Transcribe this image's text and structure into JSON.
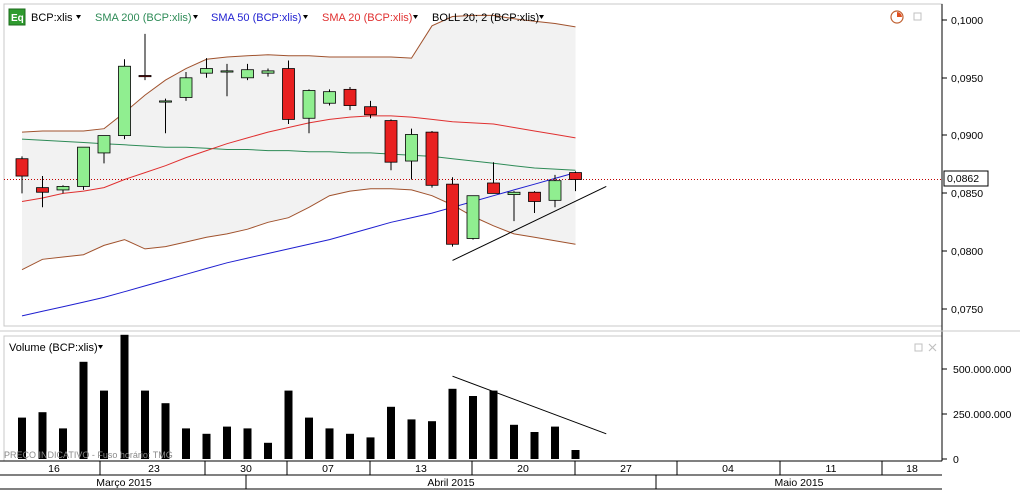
{
  "colors": {
    "sma200": "#2e8b57",
    "sma50": "#1f1fd0",
    "sma20": "#e03030",
    "boll": "#a0522d",
    "bull": "#90ee90",
    "bear": "#e82020",
    "volume": "#000000",
    "band_fill": "#f2f2f2",
    "last_price_line": "#c00000"
  },
  "toolbar": {
    "icon_label": "Eq",
    "symbol": "BCP:xlis",
    "sma200": "SMA 200 (BCP:xlis)",
    "sma50": "SMA 50 (BCP:xlis)",
    "sma20": "SMA 20 (BCP:xlis)",
    "boll": "BOLL 20; 2 (BCP:xlis)"
  },
  "volume_panel": {
    "title": "Volume (BCP:xlis)",
    "watermark": "PREÇO INDICATIVO - Fuso horário: TMG"
  },
  "price_axis": {
    "ticks": [
      "0,1000",
      "0,0950",
      "0,0900",
      "0,0850",
      "0,0800",
      "0,0750"
    ],
    "last_price": "0,0862"
  },
  "volume_axis": {
    "ticks": [
      "500.000.000",
      "250.000.000",
      "0"
    ]
  },
  "date_axis": {
    "days": [
      "16",
      "23",
      "30",
      "07",
      "13",
      "20",
      "27",
      "04",
      "11",
      "18"
    ],
    "months": [
      "Março 2015",
      "Abril 2015",
      "Maio 2015"
    ]
  },
  "chart_data": {
    "type": "candlestick",
    "symbol": "BCP:xlis",
    "ylim": [
      0.0735,
      0.1012
    ],
    "volume_ylim": [
      0,
      700000000
    ],
    "last_price": 0.0862,
    "candles": [
      {
        "o": 0.088,
        "h": 0.0882,
        "l": 0.085,
        "c": 0.0865
      },
      {
        "o": 0.0855,
        "h": 0.0865,
        "l": 0.0838,
        "c": 0.0851
      },
      {
        "o": 0.0853,
        "h": 0.0857,
        "l": 0.085,
        "c": 0.0856
      },
      {
        "o": 0.0856,
        "h": 0.089,
        "l": 0.0853,
        "c": 0.089
      },
      {
        "o": 0.0885,
        "h": 0.09,
        "l": 0.0876,
        "c": 0.09
      },
      {
        "o": 0.09,
        "h": 0.0966,
        "l": 0.0897,
        "c": 0.096
      },
      {
        "o": 0.0952,
        "h": 0.0988,
        "l": 0.0948,
        "c": 0.0951
      },
      {
        "o": 0.093,
        "h": 0.0932,
        "l": 0.0902,
        "c": 0.093
      },
      {
        "o": 0.0933,
        "h": 0.0955,
        "l": 0.093,
        "c": 0.095
      },
      {
        "o": 0.0954,
        "h": 0.0967,
        "l": 0.095,
        "c": 0.0958
      },
      {
        "o": 0.0956,
        "h": 0.0962,
        "l": 0.0934,
        "c": 0.0956
      },
      {
        "o": 0.095,
        "h": 0.0962,
        "l": 0.0948,
        "c": 0.0957
      },
      {
        "o": 0.0954,
        "h": 0.0958,
        "l": 0.0951,
        "c": 0.0956
      },
      {
        "o": 0.0958,
        "h": 0.0965,
        "l": 0.091,
        "c": 0.0914
      },
      {
        "o": 0.0915,
        "h": 0.094,
        "l": 0.0902,
        "c": 0.0939
      },
      {
        "o": 0.0928,
        "h": 0.094,
        "l": 0.0926,
        "c": 0.0938
      },
      {
        "o": 0.094,
        "h": 0.0942,
        "l": 0.0922,
        "c": 0.0926
      },
      {
        "o": 0.0925,
        "h": 0.093,
        "l": 0.0915,
        "c": 0.0918
      },
      {
        "o": 0.0913,
        "h": 0.0914,
        "l": 0.087,
        "c": 0.0877
      },
      {
        "o": 0.0878,
        "h": 0.0906,
        "l": 0.0862,
        "c": 0.0901
      },
      {
        "o": 0.0903,
        "h": 0.0904,
        "l": 0.0855,
        "c": 0.0857
      },
      {
        "o": 0.0858,
        "h": 0.0864,
        "l": 0.0804,
        "c": 0.0806
      },
      {
        "o": 0.0811,
        "h": 0.0848,
        "l": 0.081,
        "c": 0.0848
      },
      {
        "o": 0.0859,
        "h": 0.0877,
        "l": 0.085,
        "c": 0.085
      },
      {
        "o": 0.0849,
        "h": 0.0852,
        "l": 0.0826,
        "c": 0.0851
      },
      {
        "o": 0.0851,
        "h": 0.0852,
        "l": 0.0833,
        "c": 0.0843
      },
      {
        "o": 0.0844,
        "h": 0.0866,
        "l": 0.0838,
        "c": 0.0861
      },
      {
        "o": 0.0868,
        "h": 0.0869,
        "l": 0.0852,
        "c": 0.0862
      }
    ],
    "volume": [
      230000000,
      260000000,
      170000000,
      540000000,
      380000000,
      690000000,
      380000000,
      310000000,
      170000000,
      140000000,
      180000000,
      170000000,
      90000000,
      380000000,
      230000000,
      170000000,
      140000000,
      120000000,
      290000000,
      220000000,
      210000000,
      390000000,
      350000000,
      380000000,
      190000000,
      150000000,
      180000000,
      50000000
    ],
    "sma200": [
      0.0897,
      0.0896,
      0.0895,
      0.0894,
      0.0893,
      0.0892,
      0.0891,
      0.089,
      0.089,
      0.0889,
      0.0888,
      0.0888,
      0.0887,
      0.0887,
      0.0886,
      0.0886,
      0.0885,
      0.0885,
      0.0884,
      0.0883,
      0.0882,
      0.088,
      0.0878,
      0.0876,
      0.0874,
      0.0872,
      0.0871,
      0.087
    ],
    "sma50": [
      0.0744,
      0.0748,
      0.0752,
      0.0756,
      0.076,
      0.0765,
      0.077,
      0.0775,
      0.078,
      0.0785,
      0.079,
      0.0794,
      0.0798,
      0.0802,
      0.0806,
      0.081,
      0.0815,
      0.082,
      0.0825,
      0.0829,
      0.0833,
      0.0838,
      0.0843,
      0.0848,
      0.0853,
      0.0858,
      0.0863,
      0.0868
    ],
    "sma20": [
      0.0843,
      0.0846,
      0.085,
      0.0852,
      0.0855,
      0.0862,
      0.0868,
      0.0874,
      0.0881,
      0.0887,
      0.0893,
      0.0898,
      0.0903,
      0.0907,
      0.0911,
      0.0914,
      0.0916,
      0.0917,
      0.0917,
      0.0916,
      0.0914,
      0.0912,
      0.0911,
      0.091,
      0.0907,
      0.0904,
      0.0901,
      0.0898
    ],
    "boll_upper": [
      0.0903,
      0.0904,
      0.0904,
      0.0904,
      0.0906,
      0.092,
      0.0935,
      0.0948,
      0.0958,
      0.0966,
      0.0968,
      0.0969,
      0.097,
      0.0969,
      0.0969,
      0.0968,
      0.0968,
      0.0968,
      0.0968,
      0.0967,
      0.0995,
      0.1003,
      0.1004,
      0.1004,
      0.1001,
      0.0999,
      0.0997,
      0.0994
    ],
    "boll_lower": [
      0.0784,
      0.0793,
      0.0795,
      0.0797,
      0.0805,
      0.081,
      0.0802,
      0.0804,
      0.0808,
      0.0812,
      0.0815,
      0.0819,
      0.0825,
      0.0829,
      0.0838,
      0.0848,
      0.0852,
      0.0854,
      0.0854,
      0.0853,
      0.0848,
      0.084,
      0.083,
      0.0822,
      0.0815,
      0.0812,
      0.0809,
      0.0806
    ],
    "price_trendline": {
      "from": [
        21,
        0.0792
      ],
      "to": [
        28.5,
        0.0856
      ]
    },
    "volume_trendline": {
      "from": [
        21,
        460000000
      ],
      "to": [
        28.5,
        140000000
      ]
    }
  }
}
